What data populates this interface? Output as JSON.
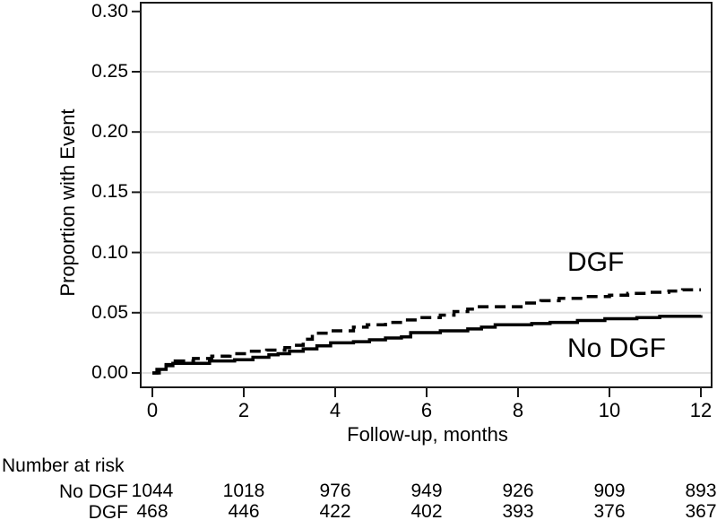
{
  "figure": {
    "title": "",
    "ylabel": "Proportion with Event",
    "xlabel": "Follow-up, months",
    "curve_labels": {
      "dgf": "DGF",
      "no_dgf": "No DGF"
    }
  },
  "colors": {
    "background": "#ffffff",
    "curve": "#000000",
    "frame": "#1a1a1a",
    "grid": "#e0e0e0",
    "text": "#000000"
  },
  "chart_data": {
    "type": "line",
    "subtype": "cumulative-incidence-step (Kaplan-Meier failure curves)",
    "title": "",
    "xlabel": "Follow-up, months",
    "ylabel": "Proportion with Event",
    "xlim": [
      0,
      12
    ],
    "ylim": [
      0,
      0.3
    ],
    "xticks": [
      0,
      2,
      4,
      6,
      8,
      10,
      12
    ],
    "ytick_labels": [
      "0.00",
      "0.05",
      "0.10",
      "0.15",
      "0.20",
      "0.25",
      "0.30"
    ],
    "ytick_values": [
      0.0,
      0.05,
      0.1,
      0.15,
      0.2,
      0.25,
      0.3
    ],
    "gridline_values": [
      0.0,
      0.05,
      0.1,
      0.15,
      0.2,
      0.25
    ],
    "grid": "horizontal light-gray gridlines, boxed frame",
    "legend_position": "in-plot text labels beside curves",
    "series": [
      {
        "name": "DGF",
        "style": "dashed",
        "points": [
          [
            0,
            0
          ],
          [
            0.15,
            0.004
          ],
          [
            0.3,
            0.007
          ],
          [
            0.5,
            0.01
          ],
          [
            0.9,
            0.012
          ],
          [
            1.3,
            0.014
          ],
          [
            1.7,
            0.016
          ],
          [
            2.1,
            0.018
          ],
          [
            2.5,
            0.019
          ],
          [
            2.9,
            0.021
          ],
          [
            3.1,
            0.023
          ],
          [
            3.3,
            0.028
          ],
          [
            3.5,
            0.033
          ],
          [
            3.9,
            0.035
          ],
          [
            4.4,
            0.038
          ],
          [
            4.7,
            0.04
          ],
          [
            5.1,
            0.042
          ],
          [
            5.5,
            0.044
          ],
          [
            5.9,
            0.046
          ],
          [
            6.3,
            0.048
          ],
          [
            6.6,
            0.051
          ],
          [
            6.9,
            0.053
          ],
          [
            7.1,
            0.055
          ],
          [
            8.1,
            0.058
          ],
          [
            8.5,
            0.06
          ],
          [
            8.9,
            0.062
          ],
          [
            9.5,
            0.0635
          ],
          [
            10.0,
            0.0645
          ],
          [
            10.4,
            0.066
          ],
          [
            10.9,
            0.067
          ],
          [
            11.3,
            0.068
          ],
          [
            11.6,
            0.069
          ],
          [
            12,
            0.069
          ]
        ]
      },
      {
        "name": "No DGF",
        "style": "solid",
        "points": [
          [
            0,
            0
          ],
          [
            0.1,
            0.003
          ],
          [
            0.3,
            0.006
          ],
          [
            0.45,
            0.008
          ],
          [
            1.25,
            0.01
          ],
          [
            1.8,
            0.011
          ],
          [
            2.2,
            0.013
          ],
          [
            2.55,
            0.015
          ],
          [
            2.75,
            0.016
          ],
          [
            3.0,
            0.018
          ],
          [
            3.3,
            0.02
          ],
          [
            3.6,
            0.0225
          ],
          [
            3.9,
            0.025
          ],
          [
            4.4,
            0.026
          ],
          [
            4.75,
            0.0275
          ],
          [
            5.1,
            0.029
          ],
          [
            5.45,
            0.03
          ],
          [
            5.65,
            0.0335
          ],
          [
            6.3,
            0.035
          ],
          [
            6.9,
            0.0365
          ],
          [
            7.2,
            0.038
          ],
          [
            7.5,
            0.04
          ],
          [
            8.3,
            0.041
          ],
          [
            8.7,
            0.042
          ],
          [
            9.3,
            0.0435
          ],
          [
            9.9,
            0.045
          ],
          [
            10.6,
            0.046
          ],
          [
            11.1,
            0.047
          ],
          [
            12,
            0.048
          ]
        ]
      }
    ],
    "risk_table": {
      "title": "Number at risk",
      "timepoints": [
        0,
        2,
        4,
        6,
        8,
        10,
        12
      ],
      "rows": [
        {
          "label": "No DGF",
          "values": [
            1044,
            1018,
            976,
            949,
            926,
            909,
            893
          ]
        },
        {
          "label": "DGF",
          "values": [
            468,
            446,
            422,
            402,
            393,
            376,
            367
          ]
        }
      ]
    }
  }
}
